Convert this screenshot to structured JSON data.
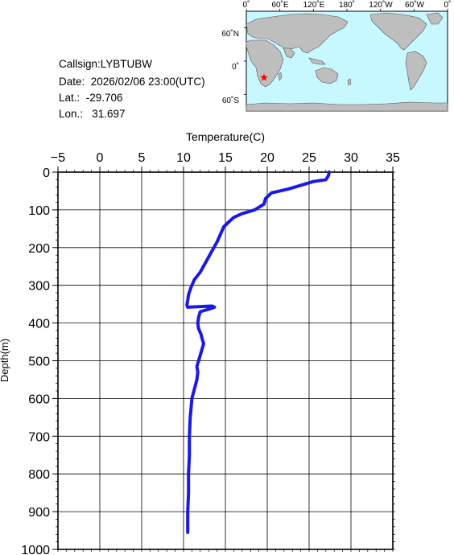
{
  "info": {
    "callsign": "Callsign:LYBTUBW",
    "date": "Date:  2026/02/06 23:00(UTC)",
    "lat": "Lat.:  -29.706",
    "lon": "Lon.:   31.697"
  },
  "map": {
    "lon_labels": [
      "0˚",
      "60˚E",
      "120˚E",
      "180˚",
      "120˚W",
      "60˚W",
      "0˚"
    ],
    "lat_labels": [
      "60˚N",
      "0˚",
      "60˚S"
    ],
    "ocean_color": "#c8f8ff",
    "land_color": "#bebebe",
    "marker": {
      "lat": -29.706,
      "lon": 31.697,
      "color": "#ff0000"
    }
  },
  "chart_data": {
    "type": "line",
    "xlabel": "Temperature(C)",
    "ylabel": "Depth(m)",
    "xlim": [
      -5,
      35
    ],
    "ylim": [
      1000,
      0
    ],
    "xticks": [
      "-5",
      "0",
      "5",
      "10",
      "15",
      "20",
      "25",
      "30",
      "35"
    ],
    "yticks": [
      "0",
      "100",
      "200",
      "300",
      "400",
      "500",
      "600",
      "700",
      "800",
      "900",
      "1000"
    ],
    "grid": true,
    "series": [
      {
        "color": "#1a1ae6",
        "points": [
          [
            27.4,
            0
          ],
          [
            27.3,
            10
          ],
          [
            27.0,
            20
          ],
          [
            25.5,
            25
          ],
          [
            24.0,
            35
          ],
          [
            22.5,
            45
          ],
          [
            20.5,
            55
          ],
          [
            19.8,
            70
          ],
          [
            19.6,
            85
          ],
          [
            18.5,
            100
          ],
          [
            17.0,
            110
          ],
          [
            16.0,
            120
          ],
          [
            15.5,
            130
          ],
          [
            14.8,
            145
          ],
          [
            14.4,
            165
          ],
          [
            14.0,
            185
          ],
          [
            13.5,
            205
          ],
          [
            13.0,
            225
          ],
          [
            12.5,
            245
          ],
          [
            12.0,
            265
          ],
          [
            11.3,
            285
          ],
          [
            10.9,
            305
          ],
          [
            10.6,
            325
          ],
          [
            10.5,
            340
          ],
          [
            10.4,
            352
          ],
          [
            10.5,
            358
          ],
          [
            13.4,
            355
          ],
          [
            13.7,
            358
          ],
          [
            13.2,
            362
          ],
          [
            12.0,
            370
          ],
          [
            11.8,
            385
          ],
          [
            11.7,
            400
          ],
          [
            11.8,
            415
          ],
          [
            12.1,
            430
          ],
          [
            12.2,
            440
          ],
          [
            12.4,
            455
          ],
          [
            12.2,
            470
          ],
          [
            12.0,
            485
          ],
          [
            11.8,
            500
          ],
          [
            11.6,
            515
          ],
          [
            11.7,
            530
          ],
          [
            11.6,
            550
          ],
          [
            11.3,
            575
          ],
          [
            11.0,
            600
          ],
          [
            10.9,
            625
          ],
          [
            10.8,
            650
          ],
          [
            10.7,
            700
          ],
          [
            10.7,
            750
          ],
          [
            10.6,
            800
          ],
          [
            10.6,
            850
          ],
          [
            10.5,
            900
          ],
          [
            10.5,
            955
          ]
        ]
      }
    ]
  }
}
